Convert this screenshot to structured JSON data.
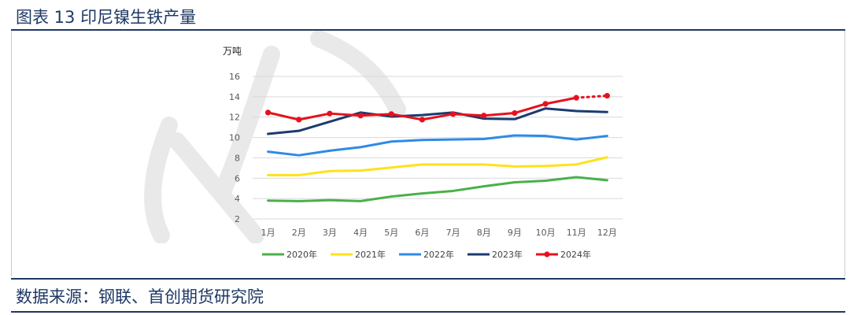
{
  "header": {
    "title": "图表 13 印尼镍生铁产量"
  },
  "footer": {
    "source": "数据来源：钢联、首创期货研究院"
  },
  "chart_data": {
    "type": "line",
    "ylabel": "万吨",
    "ylim": [
      2,
      16
    ],
    "yticks": [
      2,
      4,
      6,
      8,
      10,
      12,
      14,
      16
    ],
    "categories": [
      "1月",
      "2月",
      "3月",
      "4月",
      "5月",
      "6月",
      "7月",
      "8月",
      "9月",
      "10月",
      "11月",
      "12月"
    ],
    "grid": true,
    "legend_position": "bottom",
    "series": [
      {
        "name": "2020年",
        "color": "#4ab04a",
        "values": [
          3.8,
          3.75,
          3.85,
          3.75,
          4.2,
          4.5,
          4.75,
          5.2,
          5.6,
          5.75,
          6.1,
          5.8
        ]
      },
      {
        "name": "2021年",
        "color": "#fde21b",
        "values": [
          6.3,
          6.3,
          6.7,
          6.75,
          7.05,
          7.35,
          7.35,
          7.35,
          7.15,
          7.2,
          7.35,
          8.05
        ]
      },
      {
        "name": "2022年",
        "color": "#2f8be6",
        "values": [
          8.6,
          8.25,
          8.7,
          9.05,
          9.6,
          9.75,
          9.8,
          9.85,
          10.2,
          10.15,
          9.8,
          10.15
        ]
      },
      {
        "name": "2023年",
        "color": "#1b3b6f",
        "values": [
          10.35,
          10.65,
          11.55,
          12.45,
          12.05,
          12.2,
          12.45,
          11.85,
          11.8,
          12.85,
          12.6,
          12.5
        ]
      },
      {
        "name": "2024年",
        "color": "#e8101e",
        "markers": true,
        "projected_from_index": 10,
        "values": [
          12.45,
          11.75,
          12.35,
          12.15,
          12.3,
          11.75,
          12.3,
          12.15,
          12.4,
          13.3,
          13.9,
          14.1
        ]
      }
    ]
  }
}
